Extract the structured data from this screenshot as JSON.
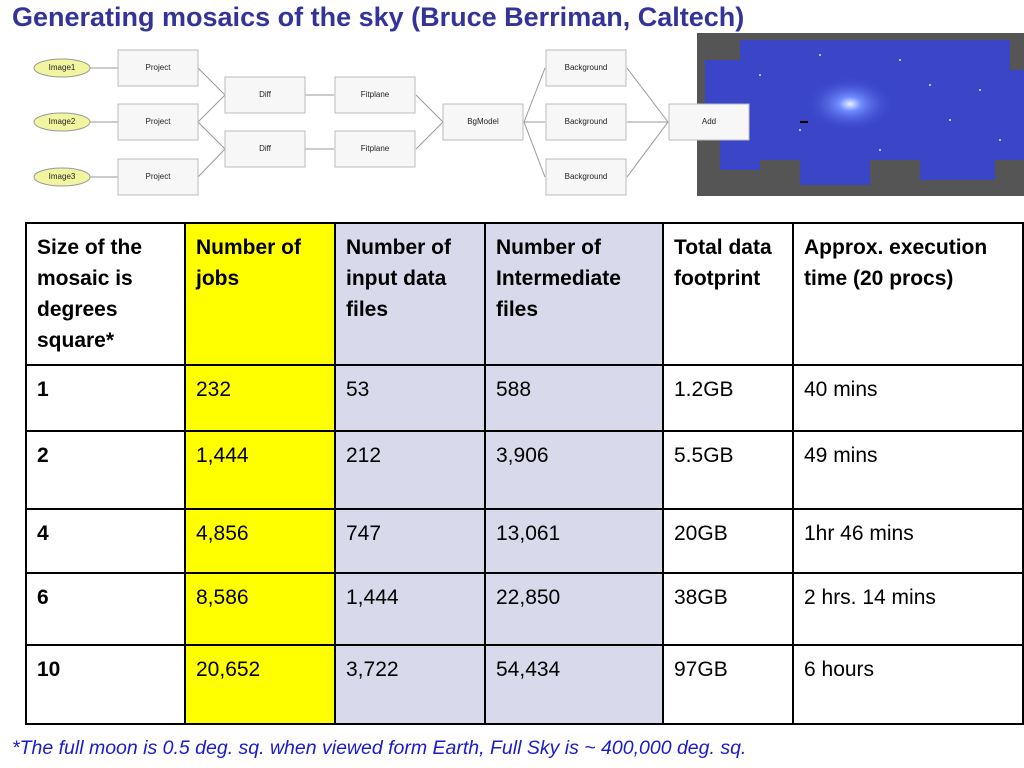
{
  "title": "Generating mosaics of the sky (Bruce Berriman, Caltech)",
  "diagram": {
    "nodes": [
      {
        "label": "Image1"
      },
      {
        "label": "Image2"
      },
      {
        "label": "Image3"
      },
      {
        "label": "Project"
      },
      {
        "label": "Project"
      },
      {
        "label": "Project"
      },
      {
        "label": "Diff"
      },
      {
        "label": "Diff"
      },
      {
        "label": "Fitplane"
      },
      {
        "label": "Fitplane"
      },
      {
        "label": "BgModel"
      },
      {
        "label": "Background"
      },
      {
        "label": "Background"
      },
      {
        "label": "Background"
      },
      {
        "label": "Add"
      }
    ]
  },
  "table": {
    "header": [
      "Size of the mosaic is degrees square*",
      "Number of jobs",
      "Number of input data files",
      "Number of Intermediate files",
      "Total data footprint",
      "Approx. execution time (20 procs)"
    ],
    "rows": [
      [
        "1",
        "232",
        "53",
        "588",
        "1.2GB",
        "40 mins"
      ],
      [
        "2",
        "1,444",
        "212",
        "3,906",
        "5.5GB",
        "49 mins"
      ],
      [
        "4",
        "4,856",
        "747",
        "13,061",
        "20GB",
        "1hr 46 mins"
      ],
      [
        "6",
        "8,586",
        "1,444",
        "22,850",
        "38GB",
        "2 hrs. 14 mins"
      ],
      [
        "10",
        "20,652",
        "3,722",
        "54,434",
        "97GB",
        "6 hours"
      ]
    ]
  },
  "footnote": "*The full moon is 0.5 deg. sq. when viewed form Earth, Full Sky  is ~ 400,000 deg. sq."
}
